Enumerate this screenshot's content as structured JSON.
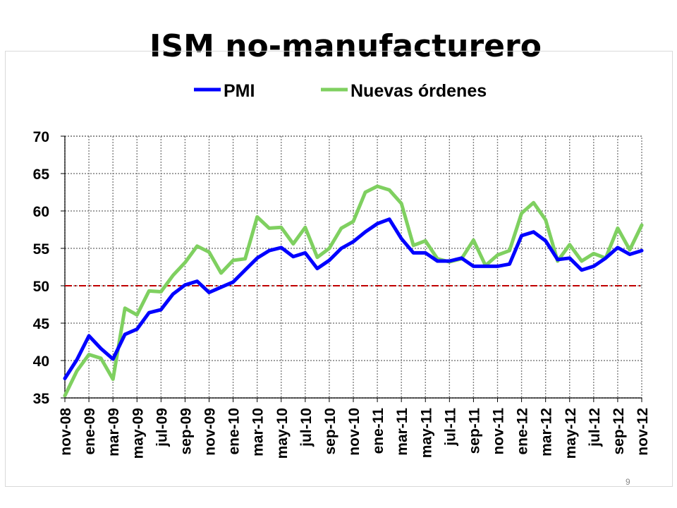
{
  "slide": {
    "title": "ISM no-manufacturero",
    "page_number": "9"
  },
  "colors": {
    "pmi": "#0000ff",
    "new_orders": "#7fd060",
    "reference_line": "#c00000",
    "grid": "#808080"
  },
  "chart_data": {
    "type": "line",
    "title": "",
    "xlabel": "",
    "ylabel": "",
    "ylim": [
      35,
      70
    ],
    "yticks": [
      35,
      40,
      45,
      50,
      55,
      60,
      65,
      70
    ],
    "grid": true,
    "legend_position": "top",
    "x": [
      "nov-08",
      "dic-08",
      "ene-09",
      "feb-09",
      "mar-09",
      "abr-09",
      "may-09",
      "jun-09",
      "jul-09",
      "ago-09",
      "sep-09",
      "oct-09",
      "nov-09",
      "dic-09",
      "ene-10",
      "feb-10",
      "mar-10",
      "abr-10",
      "may-10",
      "jun-10",
      "jul-10",
      "ago-10",
      "sep-10",
      "oct-10",
      "nov-10",
      "dic-10",
      "ene-11",
      "feb-11",
      "mar-11",
      "abr-11",
      "may-11",
      "jun-11",
      "jul-11",
      "ago-11",
      "sep-11",
      "oct-11",
      "nov-11",
      "dic-11",
      "ene-12",
      "feb-12",
      "mar-12",
      "abr-12",
      "may-12",
      "jun-12",
      "jul-12",
      "ago-12",
      "sep-12",
      "oct-12",
      "nov-12"
    ],
    "x_tick_labels": [
      "nov-08",
      "ene-09",
      "mar-09",
      "may-09",
      "jul-09",
      "sep-09",
      "nov-09",
      "ene-10",
      "mar-10",
      "may-10",
      "jul-10",
      "sep-10",
      "nov-10",
      "ene-11",
      "mar-11",
      "may-11",
      "jul-11",
      "sep-11",
      "nov-11",
      "ene-12",
      "mar-12",
      "may-12",
      "jul-12",
      "sep-12",
      "nov-12"
    ],
    "reference_line": {
      "y": 50
    },
    "series": [
      {
        "name": "PMI",
        "color": "#0000ff",
        "values": [
          37.6,
          40.1,
          43.3,
          41.6,
          40.2,
          43.5,
          44.2,
          46.4,
          46.8,
          48.9,
          50.1,
          50.6,
          49.1,
          49.8,
          50.5,
          52.1,
          53.7,
          54.7,
          55.1,
          53.9,
          54.4,
          52.3,
          53.4,
          55.0,
          55.9,
          57.2,
          58.3,
          58.9,
          56.3,
          54.4,
          54.4,
          53.3,
          53.3,
          53.7,
          52.6,
          52.6,
          52.6,
          52.9,
          56.7,
          57.2,
          56.0,
          53.5,
          53.7,
          52.1,
          52.6,
          53.7,
          55.1,
          54.2,
          54.7
        ]
      },
      {
        "name": "Nuevas órdenes",
        "color": "#7fd060",
        "values": [
          35.3,
          38.6,
          40.8,
          40.3,
          37.5,
          47.0,
          46.1,
          49.3,
          49.2,
          51.4,
          53.1,
          55.3,
          54.5,
          51.7,
          53.4,
          53.6,
          59.2,
          57.7,
          57.8,
          55.6,
          57.8,
          53.8,
          55.0,
          57.7,
          58.6,
          62.5,
          63.3,
          62.8,
          61.0,
          55.4,
          56.0,
          53.6,
          53.2,
          53.6,
          56.1,
          52.7,
          54.1,
          54.7,
          59.7,
          61.1,
          58.8,
          53.3,
          55.5,
          53.3,
          54.3,
          53.7,
          57.7,
          54.8,
          58.1
        ]
      }
    ]
  }
}
